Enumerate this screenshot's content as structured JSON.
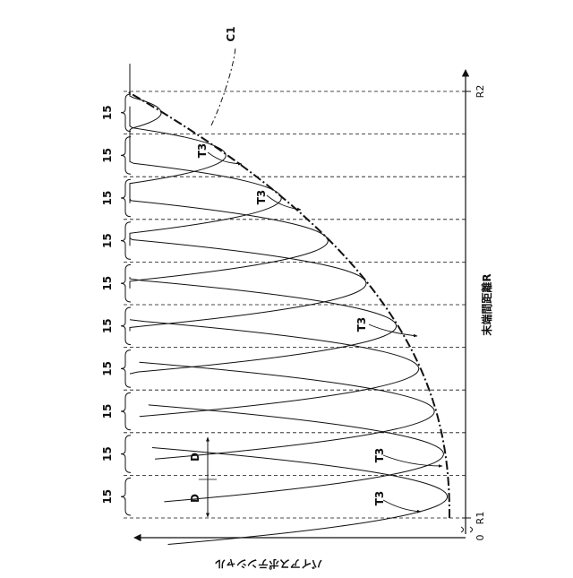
{
  "figure": {
    "axis_x_label": "末端間距離R",
    "axis_y_label": "バイアスポテンシャル",
    "origin_label": "0",
    "r1_label": "R1",
    "r2_label": "R2",
    "envelope_label": "C1",
    "curve_labels": [
      "T3",
      "T3",
      "T3",
      "T3",
      "T3"
    ],
    "bin_width_label": "15",
    "bin_count": 10,
    "spacing_label": "D",
    "colors": {
      "ink": "#111111",
      "background": "#ffffff"
    }
  }
}
